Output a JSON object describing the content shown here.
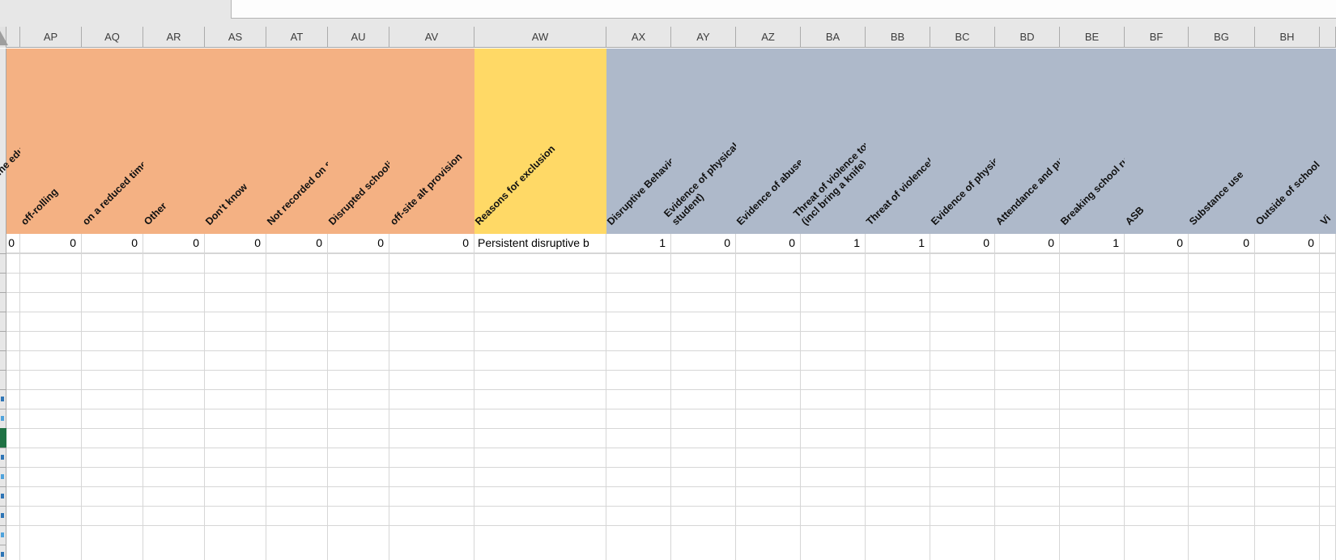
{
  "app": {
    "type": "spreadsheet-grid",
    "formula_bar_value": ""
  },
  "colors": {
    "band_orange": "#F4B183",
    "band_yellow": "#FFD966",
    "band_bluegray": "#AEB9CA",
    "selection_green": "#1F7244",
    "filtered_row_number_blue": "#2E75B6",
    "header_bg": "#E7E7E7",
    "gridline": "#D6D6D6"
  },
  "sheet": {
    "columns": [
      {
        "letter": "",
        "band": "orange",
        "header": "home education",
        "value": "0"
      },
      {
        "letter": "AP",
        "band": "orange",
        "header": "off-rolling",
        "value": "0"
      },
      {
        "letter": "AQ",
        "band": "orange",
        "header": "on a reduced timetable",
        "value": "0"
      },
      {
        "letter": "AR",
        "band": "orange",
        "header": "Other",
        "value": "0"
      },
      {
        "letter": "AS",
        "band": "orange",
        "header": "Don't know",
        "value": "0"
      },
      {
        "letter": "AT",
        "band": "orange",
        "header": "Not recorded on system",
        "value": "0"
      },
      {
        "letter": "AU",
        "band": "orange",
        "header": "Disrupted schooling",
        "value": "0"
      },
      {
        "letter": "AV",
        "band": "orange",
        "header": "off-site alt provision",
        "value": "0"
      },
      {
        "letter": "AW",
        "band": "yellow",
        "header": "Reasons for exclusion",
        "value": "Persistent disruptive b"
      },
      {
        "letter": "AX",
        "band": "bluegray",
        "header": "Disruptive Behaviour",
        "value": "1"
      },
      {
        "letter": "AY",
        "band": "bluegray",
        "header": "Evidence of physical violence (to\nstudent)",
        "value": "0"
      },
      {
        "letter": "AZ",
        "band": "bluegray",
        "header": "Evidence of abuse (to student)",
        "value": "0"
      },
      {
        "letter": "BA",
        "band": "bluegray",
        "header": "Threat of violence towards student\n(incl bring a knife)",
        "value": "1"
      },
      {
        "letter": "BB",
        "band": "bluegray",
        "header": "Threat of violence/ abuse (to adult)",
        "value": "1"
      },
      {
        "letter": "BC",
        "band": "bluegray",
        "header": "Evidence of physical abuse to adult",
        "value": "0"
      },
      {
        "letter": "BD",
        "band": "bluegray",
        "header": "Attendance and punctuality",
        "value": "0"
      },
      {
        "letter": "BE",
        "band": "bluegray",
        "header": "Breaking school rules",
        "value": "1"
      },
      {
        "letter": "BF",
        "band": "bluegray",
        "header": "ASB",
        "value": "0"
      },
      {
        "letter": "BG",
        "band": "bluegray",
        "header": "Substance use",
        "value": "0"
      },
      {
        "letter": "BH",
        "band": "bluegray",
        "header": "Outside of school",
        "value": "0"
      },
      {
        "letter": "",
        "band": "bluegray",
        "header": "Vi",
        "value": ""
      }
    ]
  }
}
